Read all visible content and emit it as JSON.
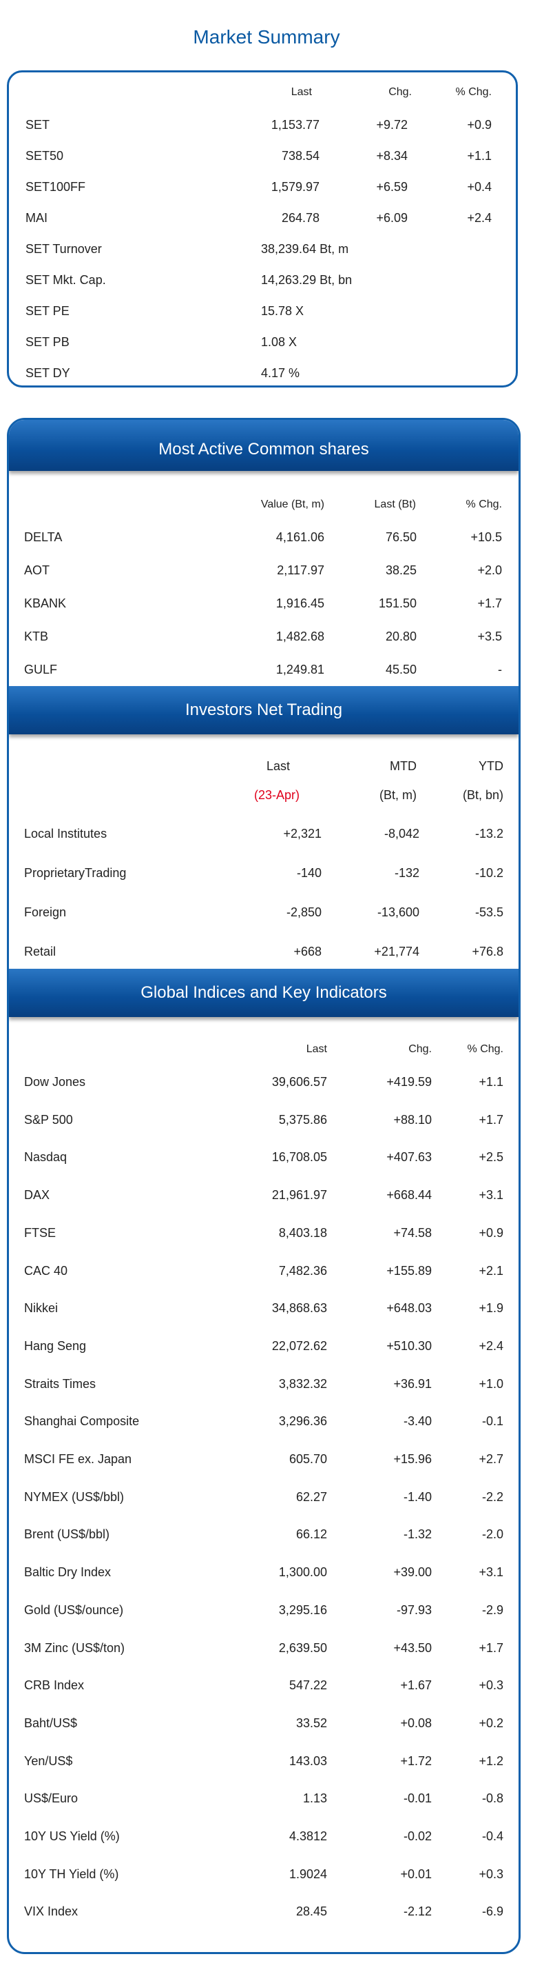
{
  "market_summary": {
    "title": "Market Summary",
    "headers": [
      "Last",
      "Chg.",
      "% Chg."
    ],
    "rows": [
      {
        "label": "SET",
        "last": "1,153.77",
        "chg": "+9.72",
        "pct": "+0.9"
      },
      {
        "label": "SET50",
        "last": "738.54",
        "chg": "+8.34",
        "pct": "+1.1"
      },
      {
        "label": "SET100FF",
        "last": "1,579.97",
        "chg": "+6.59",
        "pct": "+0.4"
      },
      {
        "label": "MAI",
        "last": "264.78",
        "chg": "+6.09",
        "pct": "+2.4"
      },
      {
        "label": "SET  Turnover",
        "last": "38,239.64 Bt, m",
        "chg": "",
        "pct": ""
      },
      {
        "label": "SET  Mkt. Cap.",
        "last": "14,263.29 Bt, bn",
        "chg": "",
        "pct": ""
      },
      {
        "label": "SET  PE",
        "last": "15.78 X",
        "chg": "",
        "pct": ""
      },
      {
        "label": "SET  PB",
        "last": "1.08 X",
        "chg": "",
        "pct": ""
      },
      {
        "label": "SET  DY",
        "last": "4.17 %",
        "chg": "",
        "pct": ""
      }
    ]
  },
  "most_active": {
    "title": "Most Active Common shares",
    "headers": [
      "Value (Bt, m)",
      "Last (Bt)",
      "% Chg."
    ],
    "rows": [
      {
        "label": "DELTA",
        "value": "4,161.06",
        "last": "76.50",
        "pct": "+10.5"
      },
      {
        "label": "AOT",
        "value": "2,117.97",
        "last": "38.25",
        "pct": "+2.0"
      },
      {
        "label": "KBANK",
        "value": "1,916.45",
        "last": "151.50",
        "pct": "+1.7"
      },
      {
        "label": "KTB",
        "value": "1,482.68",
        "last": "20.80",
        "pct": "+3.5"
      },
      {
        "label": "GULF",
        "value": "1,249.81",
        "last": "45.50",
        "pct": "-"
      }
    ]
  },
  "investors": {
    "title": "Investors Net Trading",
    "headers": [
      "Last",
      "MTD",
      "YTD"
    ],
    "subheaders": [
      "(23-Apr)",
      "(Bt, m)",
      "(Bt, bn)"
    ],
    "rows": [
      {
        "label": "Local Institutes",
        "last": "+2,321",
        "mtd": "-8,042",
        "ytd": "-13.2"
      },
      {
        "label": "ProprietaryTrading",
        "last": "-140",
        "mtd": "-132",
        "ytd": "-10.2"
      },
      {
        "label": "Foreign",
        "last": "-2,850",
        "mtd": "-13,600",
        "ytd": "-53.5"
      },
      {
        "label": "Retail",
        "last": "+668",
        "mtd": "+21,774",
        "ytd": "+76.8"
      }
    ]
  },
  "global": {
    "title": "Global Indices and Key Indicators",
    "headers": [
      "Last",
      "Chg.",
      "% Chg."
    ],
    "rows": [
      {
        "label": "Dow Jones",
        "last": "39,606.57",
        "chg": "+419.59",
        "pct": "+1.1"
      },
      {
        "label": "S&P 500",
        "last": "5,375.86",
        "chg": "+88.10",
        "pct": "+1.7"
      },
      {
        "label": "Nasdaq",
        "last": "16,708.05",
        "chg": "+407.63",
        "pct": "+2.5"
      },
      {
        "label": "DAX",
        "last": "21,961.97",
        "chg": "+668.44",
        "pct": "+3.1"
      },
      {
        "label": "FTSE",
        "last": "8,403.18",
        "chg": "+74.58",
        "pct": "+0.9"
      },
      {
        "label": "CAC 40",
        "last": "7,482.36",
        "chg": "+155.89",
        "pct": "+2.1"
      },
      {
        "label": "Nikkei",
        "last": "34,868.63",
        "chg": "+648.03",
        "pct": "+1.9"
      },
      {
        "label": "Hang Seng",
        "last": "22,072.62",
        "chg": "+510.30",
        "pct": "+2.4"
      },
      {
        "label": "Straits Times",
        "last": "3,832.32",
        "chg": "+36.91",
        "pct": "+1.0"
      },
      {
        "label": "Shanghai Composite",
        "last": "3,296.36",
        "chg": "-3.40",
        "pct": "-0.1"
      },
      {
        "label": "MSCI FE ex. Japan",
        "last": "605.70",
        "chg": "+15.96",
        "pct": "+2.7"
      },
      {
        "label": "NYMEX (US$/bbl)",
        "last": "62.27",
        "chg": "-1.40",
        "pct": "-2.2"
      },
      {
        "label": "Brent (US$/bbl)",
        "last": "66.12",
        "chg": "-1.32",
        "pct": "-2.0"
      },
      {
        "label": "Baltic Dry Index",
        "last": "1,300.00",
        "chg": "+39.00",
        "pct": "+3.1"
      },
      {
        "label": "Gold (US$/ounce)",
        "last": "3,295.16",
        "chg": "-97.93",
        "pct": "-2.9"
      },
      {
        "label": "3M Zinc (US$/ton)",
        "last": "2,639.50",
        "chg": "+43.50",
        "pct": "+1.7"
      },
      {
        "label": "CRB Index",
        "last": "547.22",
        "chg": "+1.67",
        "pct": "+0.3"
      },
      {
        "label": "Baht/US$",
        "last": "33.52",
        "chg": "+0.08",
        "pct": "+0.2"
      },
      {
        "label": "Yen/US$",
        "last": "143.03",
        "chg": "+1.72",
        "pct": "+1.2"
      },
      {
        "label": "US$/Euro",
        "last": "1.13",
        "chg": "-0.01",
        "pct": "-0.8"
      },
      {
        "label": "10Y US Yield (%)",
        "last": "4.3812",
        "chg": "-0.02",
        "pct": "-0.4"
      },
      {
        "label": "10Y TH Yield (%)",
        "last": "1.9024",
        "chg": "+0.01",
        "pct": "+0.3"
      },
      {
        "label": "VIX Index",
        "last": "28.45",
        "chg": "-2.12",
        "pct": "-6.9"
      }
    ]
  }
}
